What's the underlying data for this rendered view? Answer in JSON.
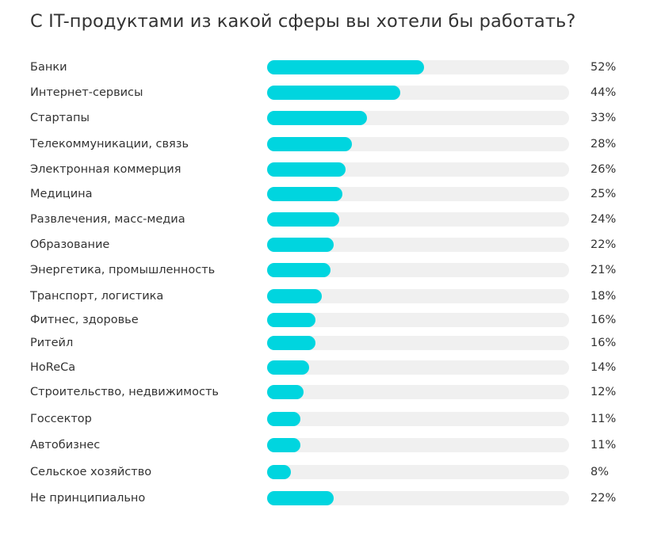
{
  "chart_data": {
    "type": "bar",
    "orientation": "horizontal",
    "title": "С IT-продуктами из какой сферы вы хотели бы работать?",
    "categories": [
      "Банки",
      "Интернет-сервисы",
      "Стартапы",
      "Телекоммуникации, связь",
      "Электронная коммерция",
      "Медицина",
      "Развлечения, масс-медиа",
      "Образование",
      "Энергетика, промышленность",
      "Транспорт, логистика",
      "Фитнес, здоровье",
      "Ритейл",
      "HoReCa",
      "Строительство, недвижимость",
      "Госсектор",
      "Автобизнес",
      "Сельское хозяйство",
      "Не принципиально"
    ],
    "values": [
      52,
      44,
      33,
      28,
      26,
      25,
      24,
      22,
      21,
      18,
      16,
      16,
      14,
      12,
      11,
      11,
      8,
      22
    ],
    "value_labels": [
      "52%",
      "44%",
      "33%",
      "28%",
      "26%",
      "25%",
      "24%",
      "22%",
      "21%",
      "18%",
      "16%",
      "16%",
      "14%",
      "12%",
      "11%",
      "11%",
      "8%",
      "22%"
    ],
    "xlim": [
      0,
      100
    ],
    "xlabel": "",
    "ylabel": "",
    "grid": false,
    "colors": {
      "bar": "#00d5df",
      "track": "#f0f0f0"
    }
  }
}
